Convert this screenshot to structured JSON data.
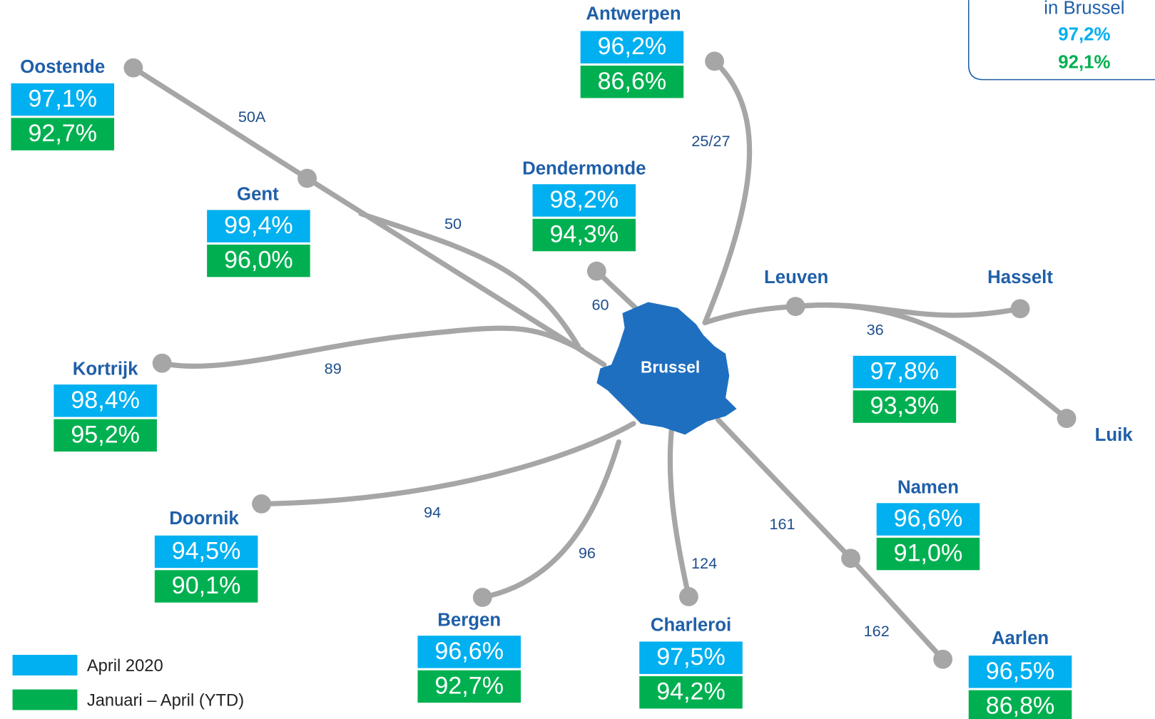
{
  "stations": [
    {
      "name": "Oostende",
      "april": "97,1%",
      "ytd": "92,7%"
    },
    {
      "name": "Antwerpen",
      "april": "96,2%",
      "ytd": "86,6%"
    },
    {
      "name": "Gent",
      "april": "99,4%",
      "ytd": "96,0%"
    },
    {
      "name": "Dendermonde",
      "april": "98,2%",
      "ytd": "94,3%"
    },
    {
      "name": "Kortrijk",
      "april": "98,4%",
      "ytd": "95,2%"
    },
    {
      "name": "Doornik",
      "april": "94,5%",
      "ytd": "90,1%"
    },
    {
      "name": "Bergen",
      "april": "96,6%",
      "ytd": "92,7%"
    },
    {
      "name": "Charleroi",
      "april": "97,5%",
      "ytd": "94,2%"
    },
    {
      "name": "Namen",
      "april": "96,6%",
      "ytd": "91,0%"
    },
    {
      "name": "Aarlen",
      "april": "96,5%",
      "ytd": "86,8%"
    }
  ],
  "leuven_hasselt_luik": {
    "names": [
      "Leuven",
      "Hasselt",
      "Luik"
    ],
    "april": "97,8%",
    "ytd": "93,3%"
  },
  "center": "Brussel",
  "line_numbers": [
    "50A",
    "25/27",
    "50",
    "60",
    "89",
    "36",
    "94",
    "96",
    "124",
    "161",
    "162"
  ],
  "brussel_box": {
    "label": "in Brussel",
    "april": "97,2%",
    "ytd": "92,1%"
  },
  "legend": [
    "April 2020",
    "Januari – April (YTD)"
  ]
}
